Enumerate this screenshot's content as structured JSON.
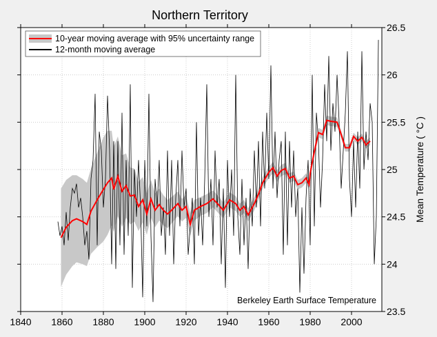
{
  "chart_data": {
    "type": "line",
    "title": "Northern Territory",
    "xlabel": "",
    "ylabel": "Mean Temperature ( °C )",
    "xlim": [
      1840,
      2015
    ],
    "ylim": [
      23.5,
      26.5
    ],
    "xticks": [
      "1840",
      "1860",
      "1880",
      "1900",
      "1920",
      "1940",
      "1960",
      "1980",
      "2000"
    ],
    "yticks": [
      "23.5",
      "24",
      "24.5",
      "25",
      "25.5",
      "26",
      "26.5"
    ],
    "y_axis_side": "right",
    "grid": true,
    "legend_position": "top-left",
    "annotation": "Berkeley Earth Surface Temperature",
    "colors": {
      "ten_year": "#ff0000",
      "band": "#c8c8c8",
      "twelve_month": "#000000"
    },
    "series": [
      {
        "name": "10-year moving average with 95% uncertainty range",
        "x": [
          1859.5,
          1862,
          1865,
          1867,
          1870,
          1872,
          1874,
          1877,
          1880,
          1882,
          1884,
          1885,
          1887,
          1889,
          1891,
          1893,
          1895,
          1897,
          1899,
          1901,
          1903,
          1905,
          1907,
          1909,
          1911,
          1913,
          1916,
          1918,
          1920,
          1922,
          1924,
          1927,
          1930,
          1933,
          1936,
          1938,
          1941,
          1944,
          1946,
          1948,
          1950,
          1953,
          1955,
          1957,
          1960,
          1962,
          1964,
          1966,
          1968,
          1970,
          1972,
          1974,
          1976,
          1978,
          1979.5,
          1980,
          1982,
          1984,
          1986,
          1988,
          1990,
          1993,
          1995,
          1997,
          1999,
          2001,
          2003,
          2005,
          2007,
          2009
        ],
        "values": [
          24.28,
          24.39,
          24.46,
          24.48,
          24.45,
          24.42,
          24.56,
          24.68,
          24.79,
          24.86,
          24.91,
          24.79,
          24.93,
          24.77,
          24.83,
          24.72,
          24.73,
          24.61,
          24.68,
          24.53,
          24.69,
          24.57,
          24.63,
          24.57,
          24.53,
          24.57,
          24.64,
          24.57,
          24.61,
          24.42,
          24.57,
          24.61,
          24.64,
          24.69,
          24.62,
          24.57,
          24.68,
          24.64,
          24.57,
          24.61,
          24.52,
          24.64,
          24.74,
          24.86,
          24.97,
          25.02,
          24.93,
          24.99,
          25.01,
          24.91,
          24.93,
          24.84,
          24.86,
          24.91,
          24.84,
          24.96,
          25.19,
          25.39,
          25.37,
          25.52,
          25.51,
          25.5,
          25.37,
          25.23,
          25.23,
          25.35,
          25.3,
          25.34,
          25.26,
          25.3
        ],
        "uncertainty": [
          0.52,
          0.5,
          0.48,
          0.46,
          0.45,
          0.44,
          0.45,
          0.5,
          0.55,
          0.55,
          0.5,
          0.45,
          0.42,
          0.38,
          0.34,
          0.3,
          0.28,
          0.26,
          0.24,
          0.22,
          0.2,
          0.18,
          0.17,
          0.16,
          0.15,
          0.14,
          0.13,
          0.12,
          0.12,
          0.12,
          0.11,
          0.1,
          0.1,
          0.09,
          0.09,
          0.08,
          0.08,
          0.08,
          0.07,
          0.07,
          0.07,
          0.07,
          0.06,
          0.06,
          0.06,
          0.06,
          0.06,
          0.06,
          0.06,
          0.05,
          0.05,
          0.05,
          0.05,
          0.05,
          0.05,
          0.05,
          0.05,
          0.05,
          0.05,
          0.05,
          0.05,
          0.05,
          0.04,
          0.04,
          0.04,
          0.04,
          0.04,
          0.04,
          0.04,
          0.04
        ]
      },
      {
        "name": "12-month moving average",
        "x_start": 1858,
        "x_step": 1,
        "values": [
          24.45,
          24.3,
          24.4,
          24.2,
          24.55,
          24.25,
          24.6,
          24.8,
          24.75,
          24.85,
          24.6,
          24.7,
          24.5,
          24.2,
          24.35,
          24.05,
          24.9,
          25.1,
          25.8,
          24.2,
          25.4,
          25.2,
          24.6,
          24.9,
          25.78,
          25.2,
          24.0,
          25.3,
          23.95,
          25.3,
          24.2,
          25.6,
          24.1,
          25.1,
          24.3,
          25.9,
          23.75,
          25.0,
          24.5,
          25.1,
          24.6,
          23.65,
          25.1,
          24.4,
          25.8,
          24.3,
          23.6,
          24.9,
          24.6,
          25.1,
          24.3,
          24.6,
          24.1,
          25.2,
          24.3,
          25.1,
          24.0,
          24.7,
          25.1,
          24.4,
          25.2,
          24.6,
          24.8,
          24.1,
          24.4,
          24.7,
          24.0,
          25.5,
          24.3,
          24.7,
          24.2,
          24.9,
          25.9,
          24.5,
          24.9,
          24.2,
          25.2,
          24.6,
          24.9,
          24.0,
          24.8,
          23.75,
          25.1,
          24.5,
          25.0,
          24.3,
          26.0,
          24.5,
          24.1,
          24.9,
          24.2,
          24.7,
          23.95,
          24.8,
          24.4,
          25.2,
          24.6,
          25.3,
          24.4,
          25.4,
          24.8,
          25.6,
          24.9,
          26.1,
          24.8,
          25.4,
          24.7,
          25.1,
          25.3,
          24.1,
          25.4,
          24.2,
          25.3,
          24.6,
          25.2,
          24.5,
          24.8,
          23.7,
          24.6,
          23.9,
          24.7,
          25.1,
          24.2,
          26.0,
          24.4,
          25.6,
          25.3,
          24.6,
          25.1,
          25.9,
          25.3,
          26.2,
          25.2,
          25.7,
          25.4,
          26.0,
          25.5,
          24.8,
          25.2,
          25.6,
          26.25,
          24.9,
          24.5,
          25.3,
          24.6,
          25.4,
          24.8,
          26.25,
          25.0,
          25.4,
          25.1,
          25.7,
          25.5,
          24.0,
          24.5,
          26.37
        ]
      }
    ]
  }
}
